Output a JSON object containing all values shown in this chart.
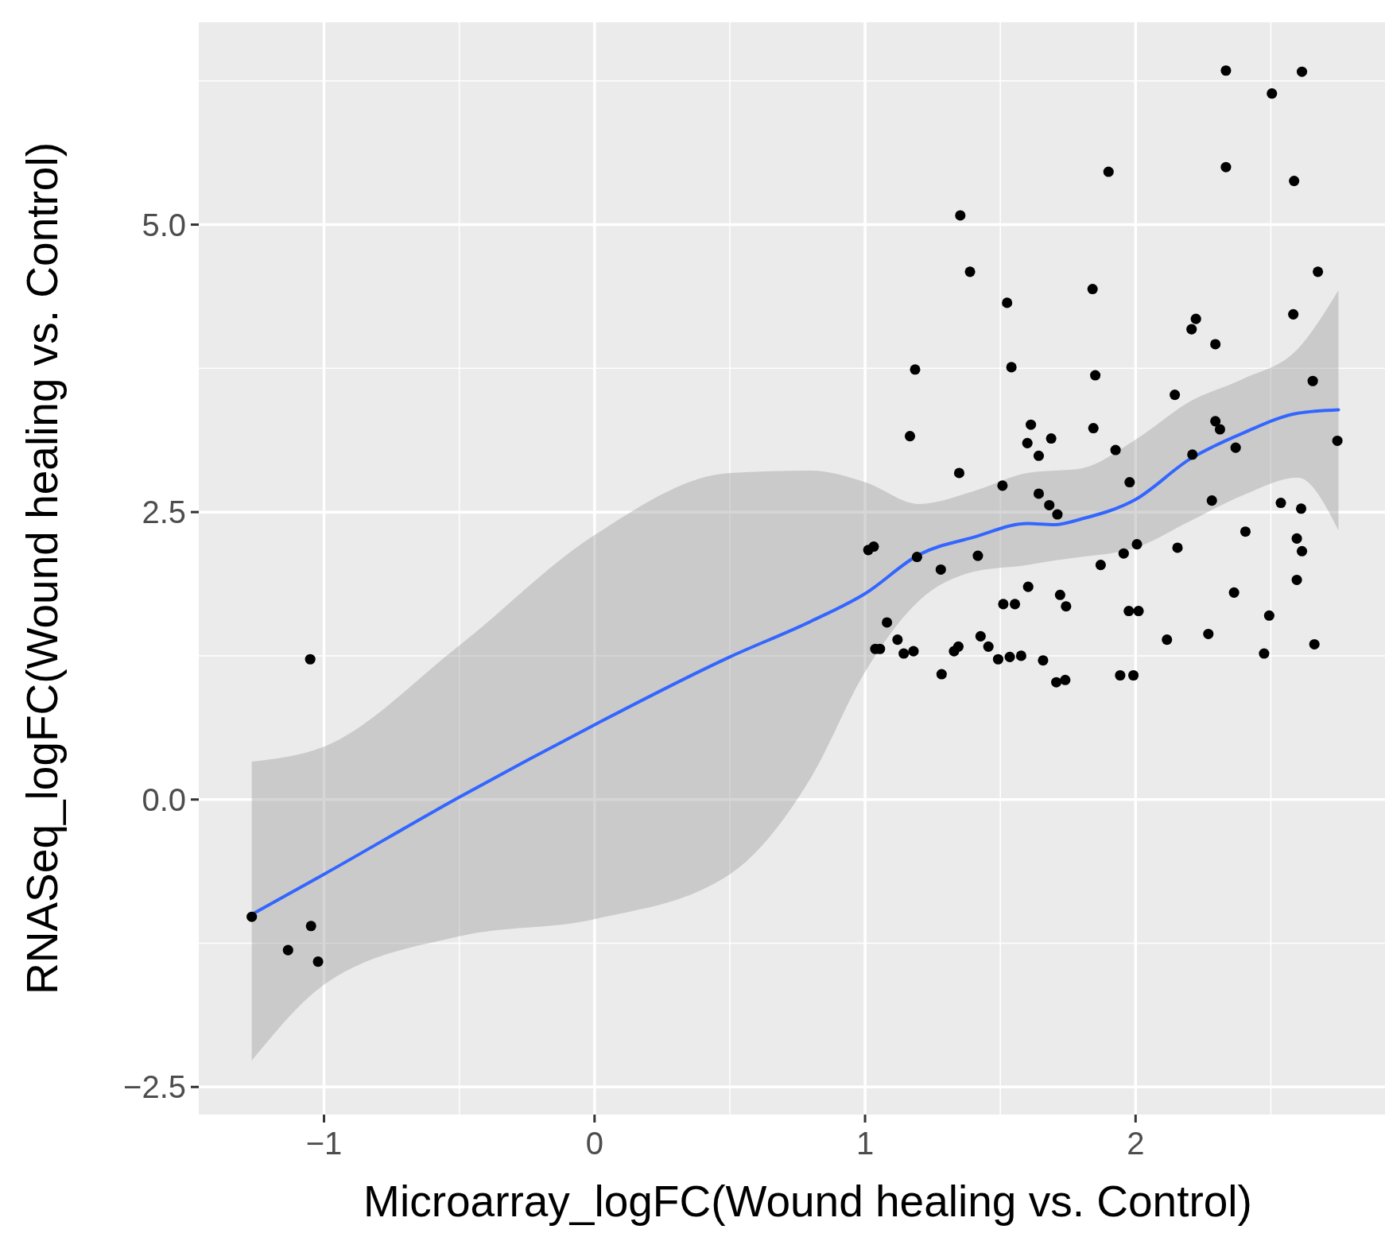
{
  "chart_data": {
    "type": "scatter",
    "xlabel": "Microarray_logFC(Wound healing vs. Control)",
    "ylabel": "RNASeq_logFC(Wound healing vs. Control)",
    "xlim": [
      -1.463,
      2.922
    ],
    "ylim": [
      -2.74,
      6.76
    ],
    "xticks": [
      {
        "value": -1,
        "label": "−1"
      },
      0,
      1,
      2
    ],
    "yticks": [
      {
        "value": -2.5,
        "label": "−2.5"
      },
      {
        "value": 0,
        "label": "0.0"
      },
      {
        "value": 2.5,
        "label": "2.5"
      },
      {
        "value": 5,
        "label": "5.0"
      }
    ],
    "grid": true,
    "marker": "circle",
    "series": [
      {
        "color": "#000000",
        "x": [
          -1.267,
          -1.133,
          -1.048,
          -1.022,
          -1.051,
          1.352,
          1.388,
          1.525,
          1.185,
          1.541,
          1.166,
          1.348,
          1.012,
          1.032,
          1.192,
          1.28,
          1.417,
          1.038,
          1.055,
          1.081,
          1.12,
          1.143,
          1.179,
          1.283,
          1.329,
          1.345,
          1.427,
          1.456,
          1.492,
          1.535,
          1.577,
          1.508,
          1.511,
          1.554,
          1.603,
          1.613,
          1.6,
          1.642,
          1.688,
          1.642,
          1.681,
          1.711,
          1.658,
          1.721,
          1.743,
          1.707,
          1.74,
          1.9,
          1.841,
          1.851,
          1.844,
          1.926,
          1.978,
          1.871,
          1.956,
          2.005,
          1.975,
          2.011,
          1.943,
          1.992,
          2.116,
          2.145,
          2.155,
          2.207,
          2.223,
          2.295,
          2.21,
          2.295,
          2.312,
          2.37,
          2.282,
          2.269,
          2.334,
          2.334,
          2.504,
          2.615,
          2.586,
          2.674,
          2.583,
          2.655,
          2.746,
          2.406,
          2.537,
          2.612,
          2.596,
          2.615,
          2.596,
          2.364,
          2.494,
          2.475,
          2.661
        ],
        "values": [
          -1.02,
          -1.31,
          -1.1,
          -1.41,
          1.22,
          5.08,
          4.59,
          4.32,
          3.74,
          3.76,
          3.16,
          2.84,
          2.17,
          2.2,
          2.11,
          2,
          2.12,
          1.31,
          1.31,
          1.54,
          1.39,
          1.27,
          1.29,
          1.09,
          1.29,
          1.33,
          1.42,
          1.33,
          1.22,
          1.24,
          1.25,
          2.73,
          1.7,
          1.7,
          1.85,
          3.26,
          3.1,
          2.99,
          3.14,
          2.66,
          2.56,
          2.48,
          1.21,
          1.78,
          1.68,
          1.02,
          1.04,
          5.46,
          4.44,
          3.69,
          3.23,
          3.04,
          2.76,
          2.04,
          2.14,
          2.22,
          1.64,
          1.64,
          1.08,
          1.08,
          1.39,
          3.52,
          2.19,
          4.09,
          4.18,
          3.96,
          3,
          3.29,
          3.22,
          3.06,
          2.6,
          1.44,
          6.34,
          5.5,
          6.14,
          6.33,
          5.38,
          4.59,
          4.22,
          3.64,
          3.12,
          2.33,
          2.58,
          2.53,
          2.27,
          2.16,
          1.91,
          1.8,
          1.6,
          1.27,
          1.35
        ]
      },
      {
        "type": "line",
        "color": "#3366ff",
        "marker": "none",
        "x": [
          -1.267,
          -1,
          -0.5,
          0,
          0.5,
          0.8,
          1,
          1.2,
          1.4,
          1.6,
          1.7,
          1.8,
          2,
          2.2,
          2.4,
          2.6,
          2.75
        ],
        "values": [
          -1,
          -0.65,
          0.02,
          0.65,
          1.24,
          1.55,
          1.79,
          2.13,
          2.28,
          2.4,
          2.39,
          2.44,
          2.61,
          2.96,
          3.19,
          3.36,
          3.39
        ],
        "lower": [
          -2.27,
          -1.61,
          -1.19,
          -1.04,
          -0.65,
          0.19,
          1.11,
          1.73,
          1.98,
          2.04,
          2.08,
          2.11,
          2.19,
          2.42,
          2.65,
          2.8,
          2.34
        ],
        "upper": [
          0.33,
          0.46,
          1.34,
          2.3,
          2.84,
          2.86,
          2.76,
          2.57,
          2.68,
          2.84,
          2.86,
          2.88,
          3.13,
          3.46,
          3.66,
          3.92,
          4.43
        ]
      }
    ]
  }
}
